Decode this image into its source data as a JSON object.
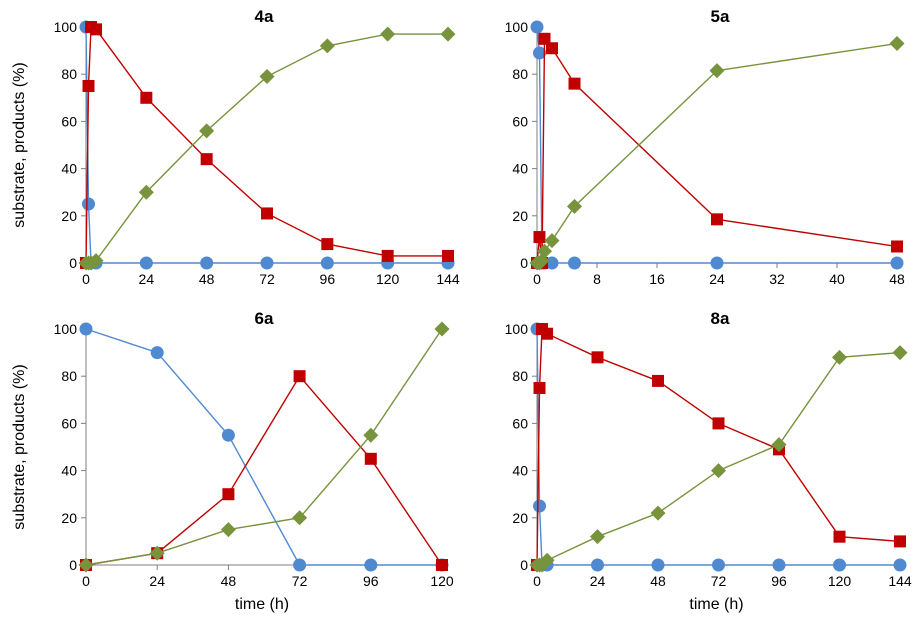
{
  "colors": {
    "substrate": "#4f8ad1",
    "intermediate": "#c00000",
    "product": "#77933c",
    "axis": "#7f7f7f"
  },
  "chart_data": [
    {
      "type": "scatter",
      "title": "4a",
      "xlabel": "",
      "ylabel": "substrate, products (%)",
      "xlim": [
        0,
        144
      ],
      "ylim": [
        0,
        100
      ],
      "xticks": [
        0,
        24,
        48,
        72,
        96,
        120,
        144
      ],
      "yticks": [
        0,
        20,
        40,
        60,
        80,
        100
      ],
      "series": [
        {
          "marker": "circle",
          "color": "#4f8ad1",
          "x": [
            0,
            1,
            2,
            4,
            24,
            48,
            72,
            96,
            120,
            144
          ],
          "y": [
            100,
            25,
            0,
            0,
            0,
            0,
            0,
            0,
            0,
            0
          ]
        },
        {
          "marker": "square",
          "color": "#c00000",
          "x": [
            0,
            1,
            2,
            4,
            24,
            48,
            72,
            96,
            120,
            144
          ],
          "y": [
            0,
            75,
            100,
            99,
            70,
            44,
            21,
            8,
            3,
            3
          ]
        },
        {
          "marker": "diamond",
          "color": "#77933c",
          "x": [
            0,
            1,
            2,
            4,
            24,
            48,
            72,
            96,
            120,
            144
          ],
          "y": [
            0,
            0,
            0,
            1,
            30,
            56,
            79,
            92,
            97,
            97
          ]
        }
      ]
    },
    {
      "type": "scatter",
      "title": "5a",
      "xlabel": "",
      "ylabel": "",
      "xlim": [
        0,
        48
      ],
      "ylim": [
        0,
        100
      ],
      "xticks": [
        0,
        8,
        16,
        24,
        32,
        40,
        48
      ],
      "yticks": [
        0,
        20,
        40,
        60,
        80,
        100
      ],
      "series": [
        {
          "marker": "circle",
          "color": "#4f8ad1",
          "x": [
            0,
            0.33,
            0.67,
            1,
            2,
            5,
            24,
            48
          ],
          "y": [
            100,
            89,
            0,
            0,
            0,
            0,
            0,
            0
          ]
        },
        {
          "marker": "square",
          "color": "#c00000",
          "x": [
            0,
            0.33,
            0.67,
            1,
            2,
            5,
            24,
            48
          ],
          "y": [
            0,
            11,
            0,
            95,
            91,
            76,
            18.5,
            7
          ]
        },
        {
          "marker": "diamond",
          "color": "#77933c",
          "x": [
            0,
            0.33,
            0.67,
            1,
            2,
            5,
            24,
            48
          ],
          "y": [
            0,
            0,
            1,
            5,
            9.5,
            24,
            81.5,
            93
          ]
        }
      ]
    },
    {
      "type": "scatter",
      "title": "6a",
      "xlabel": "time (h)",
      "ylabel": "substrate, products (%)",
      "xlim": [
        0,
        120
      ],
      "ylim": [
        0,
        100
      ],
      "xticks": [
        0,
        24,
        48,
        72,
        96,
        120
      ],
      "yticks": [
        0,
        20,
        40,
        60,
        80,
        100
      ],
      "series": [
        {
          "marker": "circle",
          "color": "#4f8ad1",
          "x": [
            0,
            24,
            48,
            72,
            96,
            120
          ],
          "y": [
            100,
            90,
            55,
            0,
            0,
            0
          ]
        },
        {
          "marker": "square",
          "color": "#c00000",
          "x": [
            0,
            24,
            48,
            72,
            96,
            120
          ],
          "y": [
            0,
            5,
            30,
            80,
            45,
            0
          ]
        },
        {
          "marker": "diamond",
          "color": "#77933c",
          "x": [
            0,
            24,
            48,
            72,
            96,
            120
          ],
          "y": [
            0,
            5,
            15,
            20,
            55,
            100
          ]
        }
      ]
    },
    {
      "type": "scatter",
      "title": "8a",
      "xlabel": "time (h)",
      "ylabel": "",
      "xlim": [
        0,
        144
      ],
      "ylim": [
        0,
        100
      ],
      "xticks": [
        0,
        24,
        48,
        72,
        96,
        120,
        144
      ],
      "yticks": [
        0,
        20,
        40,
        60,
        80,
        100
      ],
      "series": [
        {
          "marker": "circle",
          "color": "#4f8ad1",
          "x": [
            0,
            1,
            2,
            4,
            24,
            48,
            72,
            96,
            120,
            144
          ],
          "y": [
            100,
            25,
            0,
            0,
            0,
            0,
            0,
            0,
            0,
            0
          ]
        },
        {
          "marker": "square",
          "color": "#c00000",
          "x": [
            0,
            1,
            2,
            4,
            24,
            48,
            72,
            96,
            120,
            144
          ],
          "y": [
            0,
            75,
            100,
            98,
            88,
            78,
            60,
            49,
            12,
            10
          ]
        },
        {
          "marker": "diamond",
          "color": "#77933c",
          "x": [
            0,
            1,
            2,
            4,
            24,
            48,
            72,
            96,
            120,
            144
          ],
          "y": [
            0,
            0,
            0,
            2,
            12,
            22,
            40,
            51,
            88,
            90
          ]
        }
      ]
    }
  ]
}
